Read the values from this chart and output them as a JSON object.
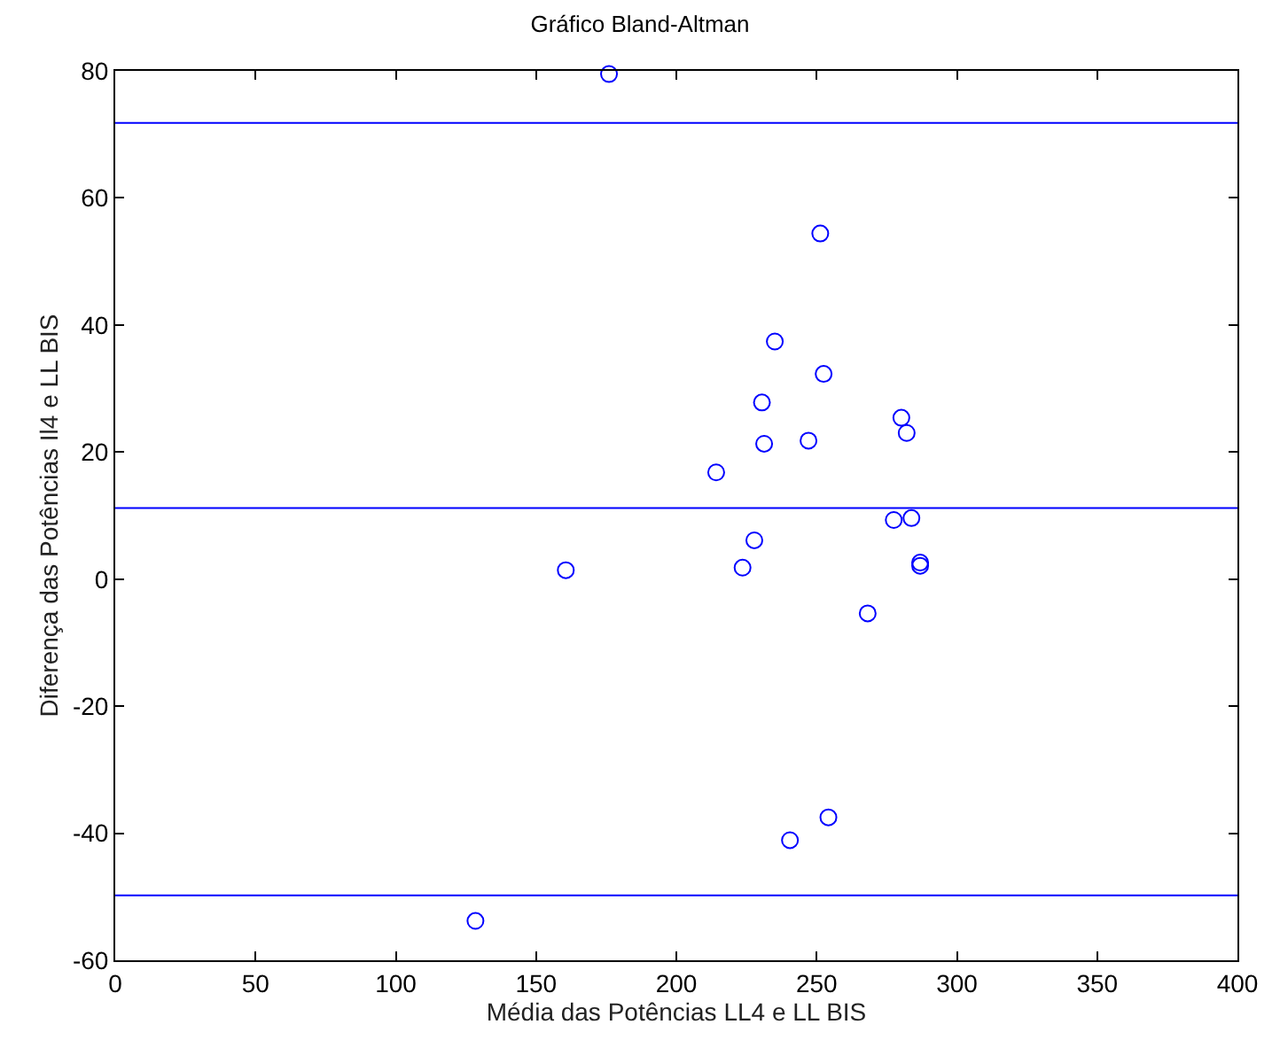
{
  "chart_data": {
    "type": "scatter",
    "title": "Gráfico Bland-Altman",
    "xlabel": "Média das Potências LL4 e LL BIS",
    "ylabel": "Diferença das Potências Il4 e LL BIS",
    "x": [
      176,
      251.3,
      235.1,
      252.5,
      230.5,
      231.3,
      247.1,
      214.2,
      280.2,
      282.1,
      277.5,
      283.8,
      227.8,
      223.6,
      286.9,
      286.9,
      268.2,
      254.2,
      240.5,
      160.6,
      128.4
    ],
    "series": [
      {
        "color": "#0000ff",
        "values": [
          79.5,
          54.4,
          37.4,
          32.3,
          27.8,
          21.3,
          21.8,
          16.8,
          25.4,
          23.0,
          9.3,
          9.6,
          6.1,
          1.8,
          2.6,
          2.1,
          -5.4,
          -37.5,
          -41.1,
          1.4,
          -53.8
        ]
      }
    ],
    "xlim": [
      0,
      400
    ],
    "xticks": [
      0,
      50,
      100,
      150,
      200,
      250,
      300,
      350,
      400
    ],
    "ylim": [
      -60,
      80
    ],
    "yticks": [
      -60,
      -40,
      -20,
      0,
      20,
      40,
      60,
      80
    ],
    "ref_lines": [
      {
        "axis": "y",
        "value": 71.8,
        "color": "#0000ff"
      },
      {
        "axis": "y",
        "value": 11.2,
        "color": "#0000ff"
      },
      {
        "axis": "y",
        "value": -49.8,
        "color": "#0000ff"
      }
    ],
    "marker": "circle"
  }
}
